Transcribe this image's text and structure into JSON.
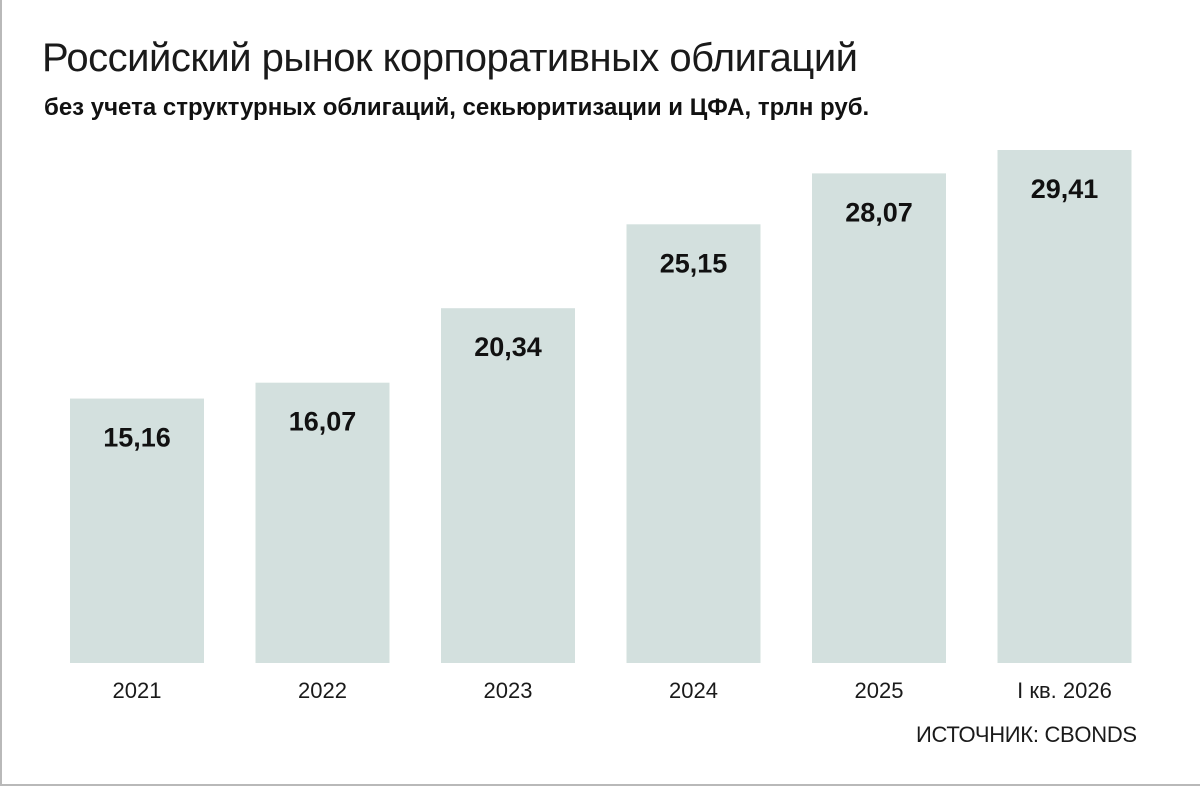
{
  "chart_data": {
    "type": "bar",
    "title": "Российский рынок корпоративных облигаций",
    "subtitle": "без учета структурных облигаций, секьюритизации и ЦФА, трлн руб.",
    "categories": [
      "2021",
      "2022",
      "2023",
      "2024",
      "2025",
      "I кв. 2026"
    ],
    "values": [
      15.16,
      16.07,
      20.34,
      25.15,
      28.07,
      29.41
    ],
    "value_labels": [
      "15,16",
      "16,07",
      "20,34",
      "25,15",
      "28,07",
      "29,41"
    ],
    "ylim": [
      0,
      29.41
    ],
    "grid": false,
    "bar_color": "#d3e0de",
    "source": "ИСТОЧНИК: CBONDS"
  }
}
